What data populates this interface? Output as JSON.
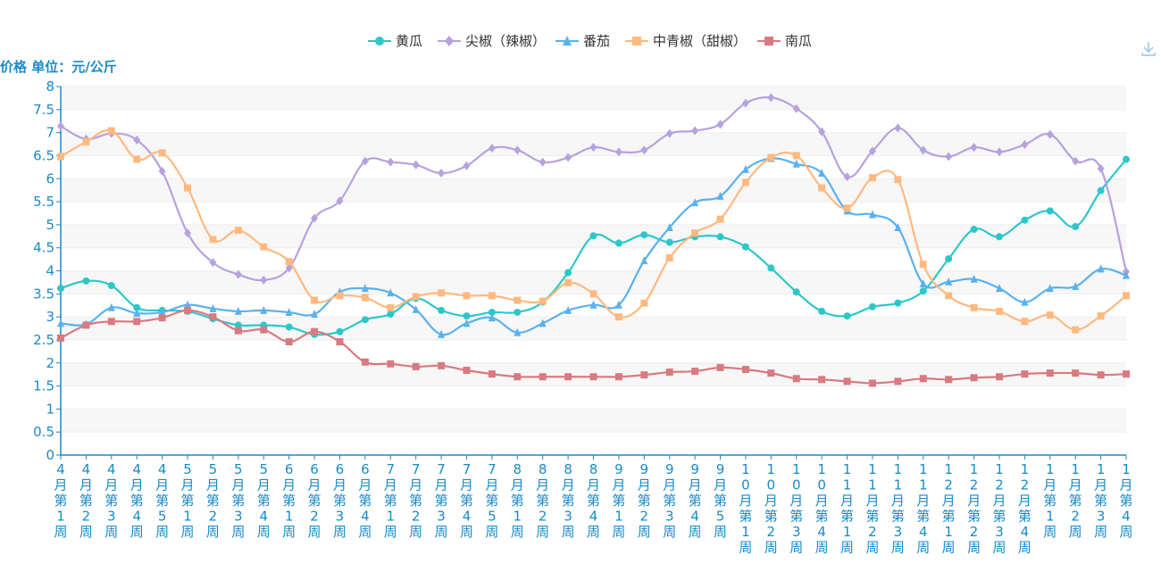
{
  "toolbox": {
    "save_icon": "download-icon"
  },
  "chart_data": {
    "type": "line",
    "title": "",
    "ylabel": "价格 单位：元/公斤",
    "xlabel": "",
    "ylim": [
      0,
      8
    ],
    "yticks": [
      "0",
      "0.5",
      "1",
      "1.5",
      "2",
      "2.5",
      "3",
      "3.5",
      "4",
      "4.5",
      "5",
      "5.5",
      "6",
      "6.5",
      "7",
      "7.5",
      "8"
    ],
    "legend_position": "top-center",
    "grid": "alternating horizontal bands",
    "categories": [
      "4月第1周",
      "4月第2周",
      "4月第3周",
      "4月第4周",
      "4月第5周",
      "5月第1周",
      "5月第2周",
      "5月第3周",
      "5月第4周",
      "6月第1周",
      "6月第2周",
      "6月第3周",
      "6月第4周",
      "7月第1周",
      "7月第2周",
      "7月第3周",
      "7月第4周",
      "7月第5周",
      "8月第1周",
      "8月第2周",
      "8月第3周",
      "8月第4周",
      "9月第1周",
      "9月第2周",
      "9月第3周",
      "9月第4周",
      "9月第5周",
      "10月第1周",
      "10月第2周",
      "10月第3周",
      "10月第4周",
      "11月第1周",
      "11月第2周",
      "11月第3周",
      "11月第4周",
      "12月第1周",
      "12月第2周",
      "12月第3周",
      "12月第4周",
      "1月第1周",
      "1月第2周",
      "1月第3周",
      "1月第4周"
    ],
    "series": [
      {
        "name": "黄瓜",
        "color": "#2ec7c9",
        "marker": "circle",
        "values": [
          3.62,
          3.78,
          3.68,
          3.2,
          3.14,
          3.12,
          2.96,
          2.82,
          2.82,
          2.78,
          2.62,
          2.68,
          2.94,
          3.06,
          3.4,
          3.14,
          3.02,
          3.1,
          3.1,
          3.32,
          3.96,
          4.76,
          4.6,
          4.78,
          4.62,
          4.74,
          4.74,
          4.52,
          4.06,
          3.54,
          3.12,
          3.02,
          3.22,
          3.3,
          3.56,
          4.26,
          4.9,
          4.74,
          5.1,
          5.3,
          4.96,
          5.74,
          6.42
        ]
      },
      {
        "name": "尖椒（辣椒）",
        "color": "#b6a2de",
        "marker": "diamond",
        "values": [
          7.14,
          6.86,
          6.98,
          6.84,
          6.16,
          4.82,
          4.18,
          3.92,
          3.8,
          4.06,
          5.14,
          5.52,
          6.38,
          6.36,
          6.3,
          6.12,
          6.28,
          6.66,
          6.62,
          6.36,
          6.46,
          6.68,
          6.58,
          6.62,
          6.98,
          7.04,
          7.18,
          7.64,
          7.76,
          7.52,
          7.02,
          6.04,
          6.6,
          7.1,
          6.62,
          6.48,
          6.68,
          6.58,
          6.74,
          6.96,
          6.38,
          6.22,
          3.98
        ]
      },
      {
        "name": "番茄",
        "color": "#5ab1ef",
        "marker": "triangle",
        "values": [
          2.86,
          2.84,
          3.2,
          3.08,
          3.1,
          3.26,
          3.18,
          3.12,
          3.14,
          3.1,
          3.06,
          3.54,
          3.62,
          3.52,
          3.16,
          2.62,
          2.86,
          2.98,
          2.66,
          2.86,
          3.14,
          3.26,
          3.26,
          4.22,
          4.94,
          5.48,
          5.62,
          6.2,
          6.44,
          6.32,
          6.12,
          5.3,
          5.22,
          4.94,
          3.72,
          3.76,
          3.82,
          3.62,
          3.32,
          3.62,
          3.66,
          4.04,
          3.9
        ]
      },
      {
        "name": "中青椒（甜椒）",
        "color": "#ffb980",
        "marker": "square",
        "values": [
          6.48,
          6.8,
          7.04,
          6.42,
          6.56,
          5.8,
          4.68,
          4.88,
          4.52,
          4.2,
          3.36,
          3.46,
          3.42,
          3.2,
          3.44,
          3.52,
          3.46,
          3.46,
          3.36,
          3.34,
          3.74,
          3.5,
          3.0,
          3.3,
          4.28,
          4.82,
          5.12,
          5.92,
          6.46,
          6.5,
          5.8,
          5.36,
          6.02,
          5.98,
          4.14,
          3.46,
          3.2,
          3.12,
          2.9,
          3.04,
          2.72,
          3.02,
          3.46
        ]
      },
      {
        "name": "南瓜",
        "color": "#d87a80",
        "marker": "square",
        "values": [
          2.54,
          2.82,
          2.9,
          2.9,
          2.98,
          3.14,
          3.0,
          2.7,
          2.72,
          2.46,
          2.68,
          2.46,
          2.02,
          1.98,
          1.92,
          1.94,
          1.84,
          1.76,
          1.7,
          1.7,
          1.7,
          1.7,
          1.7,
          1.74,
          1.8,
          1.82,
          1.9,
          1.86,
          1.78,
          1.66,
          1.64,
          1.6,
          1.56,
          1.6,
          1.66,
          1.64,
          1.68,
          1.7,
          1.76,
          1.78,
          1.78,
          1.74,
          1.76
        ]
      }
    ]
  }
}
